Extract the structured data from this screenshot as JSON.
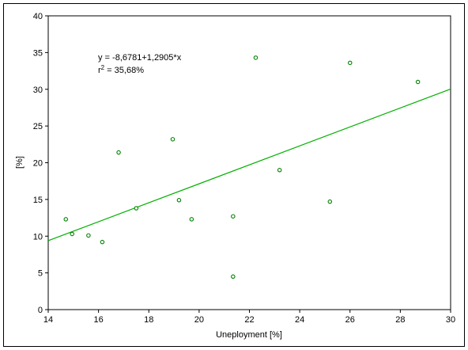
{
  "chart_data": {
    "type": "scatter",
    "title": "",
    "xlabel": "Uneployment [%]",
    "ylabel": "[%]",
    "xlim": [
      14,
      30
    ],
    "ylim": [
      0,
      40
    ],
    "x_ticks": [
      14,
      16,
      18,
      20,
      22,
      24,
      26,
      28,
      30
    ],
    "y_ticks": [
      0,
      5,
      10,
      15,
      20,
      25,
      30,
      35,
      40
    ],
    "grid": false,
    "point_color": "#008000",
    "line_color": "#00b000",
    "points": [
      {
        "x": 14.7,
        "y": 12.3
      },
      {
        "x": 14.95,
        "y": 10.3
      },
      {
        "x": 15.6,
        "y": 10.1
      },
      {
        "x": 16.15,
        "y": 9.2
      },
      {
        "x": 16.8,
        "y": 21.4
      },
      {
        "x": 17.5,
        "y": 13.8
      },
      {
        "x": 18.95,
        "y": 23.2
      },
      {
        "x": 19.2,
        "y": 14.9
      },
      {
        "x": 19.7,
        "y": 12.3
      },
      {
        "x": 21.35,
        "y": 12.7
      },
      {
        "x": 21.35,
        "y": 4.5
      },
      {
        "x": 22.25,
        "y": 34.3
      },
      {
        "x": 23.2,
        "y": 19.0
      },
      {
        "x": 25.2,
        "y": 14.7
      },
      {
        "x": 26.0,
        "y": 33.6
      },
      {
        "x": 28.7,
        "y": 31.0
      }
    ],
    "regression": {
      "intercept": -8.6781,
      "slope": 1.2905,
      "equation_label": "y =  -8,6781+1,2905*x",
      "r2_label": "r",
      "r2_exponent": "2",
      "r2_value": " =  35,68%"
    }
  }
}
